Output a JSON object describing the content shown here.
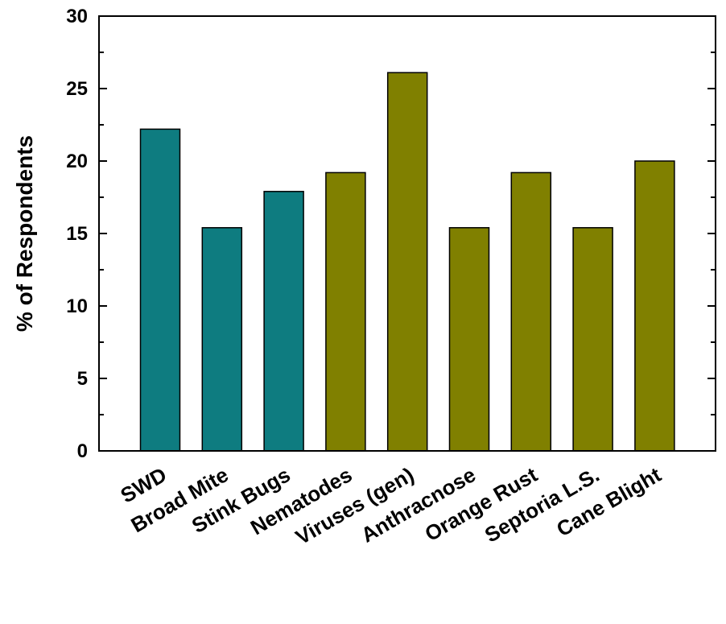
{
  "chart_data": {
    "type": "bar",
    "title": "",
    "xlabel": "",
    "ylabel": "% of Respondents",
    "ylim": [
      0,
      30
    ],
    "yticks": [
      0,
      5,
      10,
      15,
      20,
      25,
      30
    ],
    "grid": false,
    "categories": [
      "SWD",
      "Broad Mite",
      "Stink Bugs",
      "Nematodes",
      "Viruses (gen)",
      "Anthracnose",
      "Orange Rust",
      "Septoria L.S.",
      "Cane Blight"
    ],
    "values": [
      22.2,
      15.4,
      17.9,
      19.2,
      26.1,
      15.4,
      19.2,
      15.4,
      20.0
    ],
    "bar_colors": [
      "#0e7c80",
      "#0e7c80",
      "#0e7c80",
      "#808000",
      "#808000",
      "#808000",
      "#808000",
      "#808000",
      "#808000"
    ]
  }
}
